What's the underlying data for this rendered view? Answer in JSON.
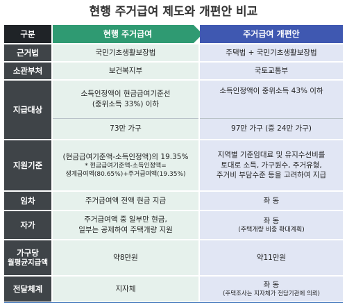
{
  "title": "현행 주거급여 제도와 개편안 비교",
  "header": {
    "label": "구분",
    "current": "현행 주거급여",
    "reform": "주거급여 개편안"
  },
  "rows": {
    "law": {
      "label": "근거법",
      "current": "국민기초생활보장법",
      "reform": "주택법 + 국민기초생활보장법"
    },
    "ministry": {
      "label": "소관부처",
      "current": "보건복지부",
      "reform": "국토교통부"
    },
    "target": {
      "label": "지급대상",
      "current_line1": "소득인정액이 현금급여기준선",
      "current_line2": "(중위소득 33%) 이하",
      "current_count": "73만 가구",
      "reform_line1": "소득인정액이 중위소득 43% 이하",
      "reform_count": "97만 가구 (증 24만 가구)"
    },
    "criteria": {
      "label": "지원기준",
      "current_line1": "(현금급여기준액-소득인정액)의 19.35%",
      "current_note1": "* 현금급여기준액-소득인정액=",
      "current_note2": "생계급여액(80.65%)+주거급여액(19.35%)",
      "reform_line1": "지역별 기준임대료 및 유지수선비를",
      "reform_line2": "토대로 소득, 가구원수, 주거유형,",
      "reform_line3": "주거비 부담수준 등을 고려하여 지급"
    },
    "rent": {
      "label": "임차",
      "current": "주거급여액 전액 현금 지급",
      "reform": "좌 동"
    },
    "owner": {
      "label": "자가",
      "current_line1": "주거급여액 중 일부만 현금,",
      "current_line2": "일부는 공제하여 주택개량 지원",
      "reform_line1": "좌 동",
      "reform_note": "(주택개량 비중 확대계획)"
    },
    "average": {
      "label_line1": "가구당",
      "label_line2": "월평균지급액",
      "current": "약8만원",
      "reform": "약11만원"
    },
    "delivery": {
      "label": "전달체계",
      "current": "지자체",
      "reform_line1": "좌 동",
      "reform_note": "(주택조사는 지자체가 전담기관에 의뢰)"
    }
  }
}
